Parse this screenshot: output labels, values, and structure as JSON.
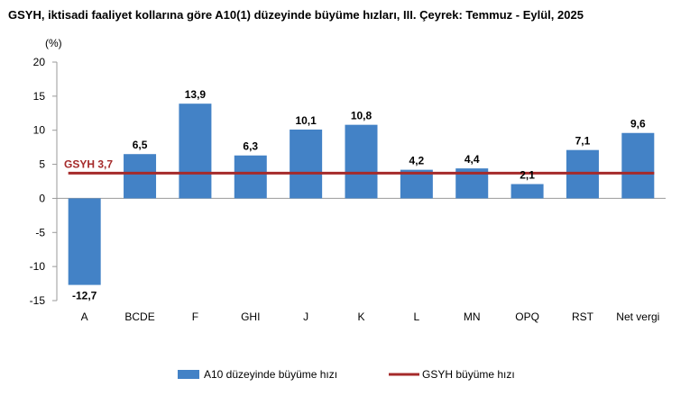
{
  "title": "GSYH, iktisadi faaliyet kollarına göre A10(1) düzeyinde büyüme hızları, III. Çeyrek: Temmuz - Eylül, 2025",
  "chart_data": {
    "type": "bar",
    "title": "GSYH, iktisadi faaliyet kollarına göre A10(1) düzeyinde büyüme hızları, III. Çeyrek: Temmuz - Eylül, 2025",
    "y_unit": "(%)",
    "xlabel": "",
    "ylabel": "",
    "ylim": [
      -15,
      20
    ],
    "yticks": [
      -15,
      -10,
      -5,
      0,
      5,
      10,
      15,
      20
    ],
    "categories": [
      "A",
      "BCDE",
      "F",
      "GHI",
      "J",
      "K",
      "L",
      "MN",
      "OPQ",
      "RST",
      "Net vergi"
    ],
    "series": [
      {
        "name": "A10 düzeyinde büyüme hızı",
        "values": [
          -12.7,
          6.5,
          13.9,
          6.3,
          10.1,
          10.8,
          4.2,
          4.4,
          2.1,
          7.1,
          9.6
        ],
        "labels": [
          "-12,7",
          "6,5",
          "13,9",
          "6,3",
          "10,1",
          "10,8",
          "4,2",
          "4,4",
          "2,1",
          "7,1",
          "9,6"
        ],
        "color": "#4382c6"
      }
    ],
    "reference_line": {
      "name": "GSYH büyüme hızı",
      "value": 3.7,
      "label": "GSYH 3,7",
      "color": "#a52a2a"
    },
    "grid": false,
    "legend_position": "bottom"
  }
}
